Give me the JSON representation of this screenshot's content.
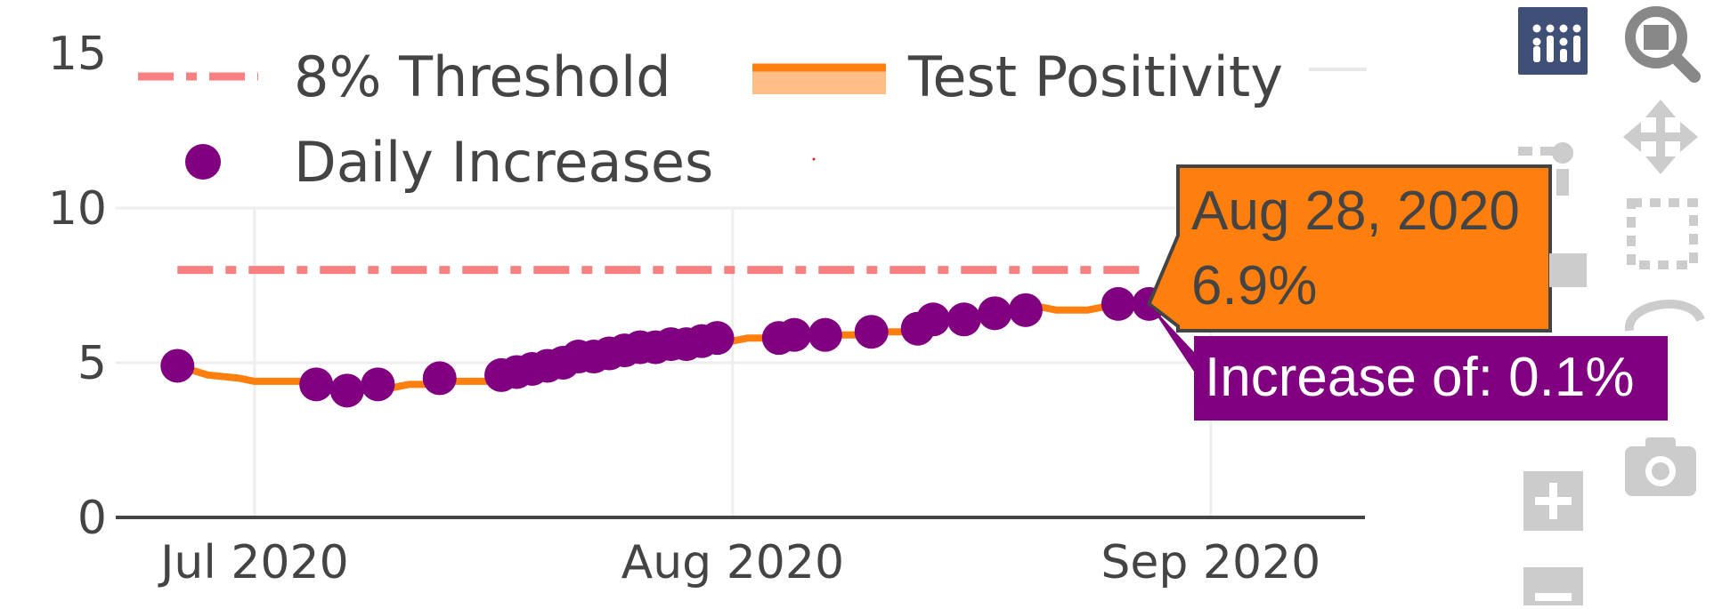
{
  "chart_data": {
    "type": "line",
    "title": "",
    "xlabel": "",
    "ylabel": "",
    "x_range": [
      "2020-06-22",
      "2020-09-11"
    ],
    "ylim": [
      0,
      15
    ],
    "y_ticks": [
      0,
      5,
      10,
      15
    ],
    "y_tick_labels": [
      "0",
      "5",
      "10",
      "15"
    ],
    "x_ticks": [
      "2020-07-01",
      "2020-08-01",
      "2020-09-01"
    ],
    "x_tick_labels": [
      "Jul 2020",
      "Aug 2020",
      "Sep 2020"
    ],
    "grid": true,
    "legend_position": "top",
    "threshold": {
      "name": "8% Threshold",
      "value": 8,
      "x_start": "2020-06-26",
      "x_end": "2020-08-28",
      "color": "#f88080"
    },
    "series": [
      {
        "name": "Test Positivity",
        "type": "line",
        "color": "#ff7f0e",
        "band_color": "#ffbf86",
        "x": [
          "2020-06-26",
          "2020-06-28",
          "2020-06-30",
          "2020-07-01",
          "2020-07-02",
          "2020-07-03",
          "2020-07-04",
          "2020-07-05",
          "2020-07-06",
          "2020-07-07",
          "2020-07-08",
          "2020-07-09",
          "2020-07-10",
          "2020-07-11",
          "2020-07-12",
          "2020-07-13",
          "2020-07-14",
          "2020-07-15",
          "2020-07-16",
          "2020-07-17",
          "2020-07-18",
          "2020-07-19",
          "2020-07-20",
          "2020-07-21",
          "2020-07-22",
          "2020-07-23",
          "2020-07-24",
          "2020-07-25",
          "2020-07-26",
          "2020-07-27",
          "2020-07-28",
          "2020-07-29",
          "2020-07-30",
          "2020-07-31",
          "2020-08-01",
          "2020-08-02",
          "2020-08-03",
          "2020-08-04",
          "2020-08-05",
          "2020-08-06",
          "2020-08-07",
          "2020-08-08",
          "2020-08-09",
          "2020-08-10",
          "2020-08-11",
          "2020-08-12",
          "2020-08-13",
          "2020-08-14",
          "2020-08-15",
          "2020-08-16",
          "2020-08-17",
          "2020-08-18",
          "2020-08-19",
          "2020-08-20",
          "2020-08-21",
          "2020-08-22",
          "2020-08-23",
          "2020-08-24",
          "2020-08-25",
          "2020-08-26",
          "2020-08-27",
          "2020-08-28",
          "2020-08-29"
        ],
        "values": [
          4.9,
          4.6,
          4.5,
          4.4,
          4.4,
          4.4,
          4.4,
          4.4,
          4.1,
          4.0,
          4.1,
          4.4,
          4.2,
          4.3,
          4.3,
          4.5,
          4.4,
          4.4,
          4.4,
          4.7,
          4.8,
          4.9,
          5.0,
          5.1,
          5.2,
          5.3,
          5.4,
          5.5,
          5.5,
          5.6,
          5.6,
          5.7,
          5.7,
          5.8,
          5.7,
          5.8,
          5.8,
          5.8,
          5.8,
          5.9,
          5.8,
          5.9,
          5.9,
          6.0,
          6.0,
          6.0,
          6.1,
          6.1,
          6.4,
          6.4,
          6.5,
          6.6,
          6.7,
          6.8,
          6.8,
          6.7,
          6.7,
          6.7,
          6.8,
          6.8,
          6.8,
          6.9,
          6.7
        ]
      },
      {
        "name": "Daily Increases",
        "type": "scatter",
        "color": "#800080",
        "x": [
          "2020-06-26",
          "2020-07-05",
          "2020-07-07",
          "2020-07-09",
          "2020-07-13",
          "2020-07-17",
          "2020-07-18",
          "2020-07-19",
          "2020-07-20",
          "2020-07-21",
          "2020-07-22",
          "2020-07-23",
          "2020-07-24",
          "2020-07-25",
          "2020-07-26",
          "2020-07-27",
          "2020-07-28",
          "2020-07-29",
          "2020-07-30",
          "2020-07-31",
          "2020-08-04",
          "2020-08-05",
          "2020-08-07",
          "2020-08-10",
          "2020-08-13",
          "2020-08-14",
          "2020-08-16",
          "2020-08-18",
          "2020-08-20",
          "2020-08-26",
          "2020-08-28"
        ],
        "values": [
          4.9,
          4.3,
          4.1,
          4.3,
          4.5,
          4.6,
          4.7,
          4.8,
          4.9,
          5.0,
          5.2,
          5.2,
          5.3,
          5.4,
          5.5,
          5.5,
          5.6,
          5.6,
          5.7,
          5.8,
          5.8,
          5.9,
          5.9,
          6.0,
          6.1,
          6.4,
          6.4,
          6.6,
          6.7,
          6.9,
          6.9
        ]
      }
    ],
    "tooltip_date": "Aug 28, 2020",
    "tooltip_value": "6.9%",
    "tooltip_increase": "Increase of: 0.1%",
    "tooltip_point": {
      "x": "2020-08-28",
      "y": 6.9
    }
  },
  "modebar": {
    "buttons": [
      {
        "name": "produced-with-plotly",
        "icon": "plotly-logo-icon",
        "color": "#3f4f75"
      },
      {
        "name": "zoom",
        "icon": "magnifier-icon",
        "active": true
      },
      {
        "name": "pan",
        "icon": "pan-arrows-icon"
      },
      {
        "name": "box-select",
        "icon": "box-select-icon"
      },
      {
        "name": "lasso-select",
        "icon": "lasso-icon"
      },
      {
        "name": "download-png",
        "icon": "camera-icon"
      },
      {
        "name": "zoom-in",
        "icon": "plus-icon"
      },
      {
        "name": "zoom-out",
        "icon": "minus-icon"
      }
    ]
  }
}
